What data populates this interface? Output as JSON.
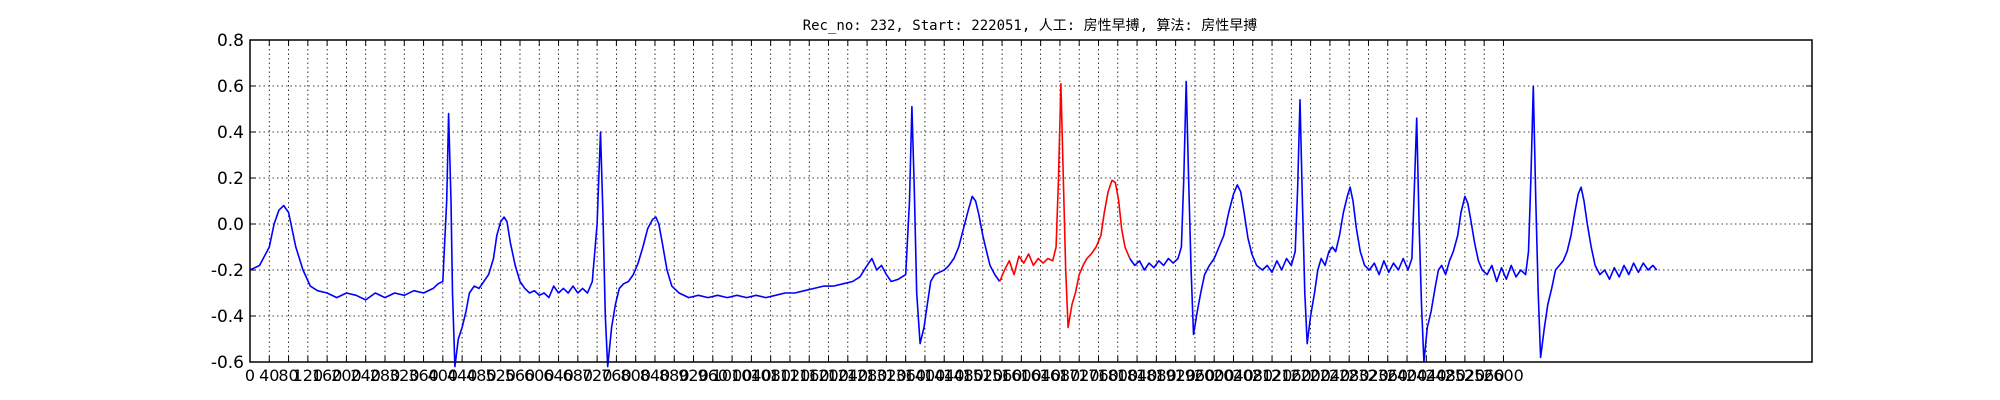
{
  "chart_data": {
    "type": "line",
    "title": "Rec_no: 232, Start: 222051, 人工: 房性早搏, 算法: 房性早搏",
    "xlabel": "",
    "ylabel": "",
    "xlim": [
      0,
      3240
    ],
    "ylim": [
      -0.6,
      0.8
    ],
    "grid": true,
    "ytick_labels": [
      "-0.6",
      "-0.4",
      "-0.2",
      "0.0",
      "0.2",
      "0.4",
      "0.6",
      "0.8"
    ],
    "xtick_labels": [
      "0",
      "40",
      "80",
      "120",
      "160",
      "200",
      "240",
      "280",
      "320",
      "360",
      "400",
      "440",
      "480",
      "520",
      "560",
      "600",
      "640",
      "680",
      "720",
      "760",
      "800",
      "840",
      "880",
      "920",
      "960",
      "1000",
      "1040",
      "1080",
      "1120",
      "1160",
      "1200",
      "1240",
      "1280",
      "1320",
      "1360",
      "1400",
      "1440",
      "1480",
      "1520",
      "1560",
      "1600",
      "1640",
      "1680",
      "1720",
      "1760",
      "1800",
      "1840",
      "1880",
      "1920",
      "1960",
      "2000",
      "2040",
      "2080",
      "2120",
      "2160",
      "2200",
      "2240",
      "2280",
      "2320",
      "2360",
      "2400",
      "2440",
      "2480",
      "2520",
      "2560",
      "2600"
    ],
    "series": [
      {
        "color": "#0000ff",
        "points": [
          [
            0,
            -0.2
          ],
          [
            20,
            -0.18
          ],
          [
            40,
            -0.1
          ],
          [
            50,
            0
          ],
          [
            60,
            0.06
          ],
          [
            70,
            0.08
          ],
          [
            80,
            0.05
          ],
          [
            95,
            -0.1
          ],
          [
            110,
            -0.2
          ],
          [
            125,
            -0.27
          ],
          [
            140,
            -0.29
          ],
          [
            160,
            -0.3
          ],
          [
            180,
            -0.32
          ],
          [
            200,
            -0.3
          ],
          [
            220,
            -0.31
          ],
          [
            240,
            -0.33
          ],
          [
            260,
            -0.3
          ],
          [
            280,
            -0.32
          ],
          [
            300,
            -0.3
          ],
          [
            320,
            -0.31
          ],
          [
            340,
            -0.29
          ],
          [
            360,
            -0.3
          ],
          [
            380,
            -0.28
          ],
          [
            390,
            -0.26
          ],
          [
            400,
            -0.25
          ],
          [
            408,
            0.1
          ],
          [
            412,
            0.48
          ],
          [
            417,
            0.1
          ],
          [
            420,
            -0.3
          ],
          [
            425,
            -0.62
          ],
          [
            432,
            -0.5
          ],
          [
            440,
            -0.45
          ],
          [
            448,
            -0.38
          ],
          [
            455,
            -0.3
          ],
          [
            465,
            -0.27
          ],
          [
            475,
            -0.28
          ],
          [
            485,
            -0.25
          ],
          [
            495,
            -0.22
          ],
          [
            505,
            -0.15
          ],
          [
            512,
            -0.05
          ],
          [
            520,
            0.01
          ],
          [
            527,
            0.03
          ],
          [
            533,
            0.01
          ],
          [
            540,
            -0.08
          ],
          [
            550,
            -0.18
          ],
          [
            560,
            -0.25
          ],
          [
            570,
            -0.28
          ],
          [
            580,
            -0.3
          ],
          [
            590,
            -0.29
          ],
          [
            600,
            -0.31
          ],
          [
            610,
            -0.3
          ],
          [
            620,
            -0.32
          ],
          [
            630,
            -0.27
          ],
          [
            640,
            -0.3
          ],
          [
            650,
            -0.28
          ],
          [
            660,
            -0.3
          ],
          [
            670,
            -0.27
          ],
          [
            680,
            -0.3
          ],
          [
            690,
            -0.28
          ],
          [
            700,
            -0.3
          ],
          [
            710,
            -0.25
          ],
          [
            720,
            0
          ],
          [
            727,
            0.4
          ],
          [
            732,
            0.05
          ],
          [
            737,
            -0.4
          ],
          [
            742,
            -0.62
          ],
          [
            750,
            -0.45
          ],
          [
            758,
            -0.35
          ],
          [
            766,
            -0.28
          ],
          [
            775,
            -0.26
          ],
          [
            785,
            -0.25
          ],
          [
            795,
            -0.22
          ],
          [
            805,
            -0.17
          ],
          [
            815,
            -0.1
          ],
          [
            825,
            -0.02
          ],
          [
            835,
            0.02
          ],
          [
            842,
            0.03
          ],
          [
            848,
            0
          ],
          [
            855,
            -0.08
          ],
          [
            865,
            -0.2
          ],
          [
            875,
            -0.27
          ],
          [
            890,
            -0.3
          ],
          [
            910,
            -0.32
          ],
          [
            930,
            -0.31
          ],
          [
            950,
            -0.32
          ],
          [
            970,
            -0.31
          ],
          [
            990,
            -0.32
          ],
          [
            1010,
            -0.31
          ],
          [
            1030,
            -0.32
          ],
          [
            1050,
            -0.31
          ],
          [
            1070,
            -0.32
          ],
          [
            1090,
            -0.31
          ],
          [
            1110,
            -0.3
          ],
          [
            1130,
            -0.3
          ],
          [
            1150,
            -0.29
          ],
          [
            1170,
            -0.28
          ],
          [
            1190,
            -0.27
          ],
          [
            1210,
            -0.27
          ],
          [
            1230,
            -0.26
          ],
          [
            1250,
            -0.25
          ],
          [
            1265,
            -0.23
          ],
          [
            1280,
            -0.18
          ],
          [
            1290,
            -0.15
          ],
          [
            1300,
            -0.2
          ],
          [
            1310,
            -0.18
          ],
          [
            1320,
            -0.22
          ],
          [
            1330,
            -0.25
          ],
          [
            1345,
            -0.24
          ],
          [
            1360,
            -0.22
          ],
          [
            1368,
            0.1
          ],
          [
            1373,
            0.51
          ],
          [
            1378,
            0.15
          ],
          [
            1383,
            -0.3
          ],
          [
            1390,
            -0.52
          ],
          [
            1398,
            -0.45
          ],
          [
            1405,
            -0.35
          ],
          [
            1412,
            -0.25
          ],
          [
            1420,
            -0.22
          ],
          [
            1430,
            -0.21
          ],
          [
            1440,
            -0.2
          ],
          [
            1450,
            -0.18
          ],
          [
            1460,
            -0.15
          ],
          [
            1470,
            -0.1
          ],
          [
            1480,
            -0.02
          ],
          [
            1490,
            0.06
          ],
          [
            1498,
            0.12
          ],
          [
            1505,
            0.1
          ],
          [
            1512,
            0.04
          ],
          [
            1520,
            -0.05
          ],
          [
            1528,
            -0.12
          ],
          [
            1535,
            -0.18
          ],
          [
            1545,
            -0.22
          ],
          [
            1555,
            -0.25
          ]
        ]
      },
      {
        "color": "#ff0000",
        "points": [
          [
            1555,
            -0.25
          ],
          [
            1565,
            -0.2
          ],
          [
            1575,
            -0.16
          ],
          [
            1585,
            -0.22
          ],
          [
            1595,
            -0.14
          ],
          [
            1605,
            -0.17
          ],
          [
            1615,
            -0.13
          ],
          [
            1625,
            -0.18
          ],
          [
            1635,
            -0.15
          ],
          [
            1645,
            -0.17
          ],
          [
            1655,
            -0.15
          ],
          [
            1665,
            -0.16
          ],
          [
            1672,
            -0.1
          ],
          [
            1677,
            0.2
          ],
          [
            1682,
            0.61
          ],
          [
            1687,
            0.2
          ],
          [
            1692,
            -0.2
          ],
          [
            1697,
            -0.45
          ],
          [
            1705,
            -0.35
          ],
          [
            1712,
            -0.3
          ],
          [
            1720,
            -0.22
          ],
          [
            1728,
            -0.18
          ],
          [
            1736,
            -0.15
          ],
          [
            1745,
            -0.13
          ],
          [
            1755,
            -0.1
          ],
          [
            1765,
            -0.05
          ],
          [
            1772,
            0.05
          ],
          [
            1780,
            0.14
          ],
          [
            1788,
            0.19
          ],
          [
            1795,
            0.18
          ],
          [
            1802,
            0.1
          ],
          [
            1808,
            -0.02
          ],
          [
            1815,
            -0.1
          ],
          [
            1825,
            -0.15
          ]
        ]
      },
      {
        "color": "#0000ff",
        "points": [
          [
            1825,
            -0.15
          ],
          [
            1835,
            -0.18
          ],
          [
            1845,
            -0.16
          ],
          [
            1855,
            -0.2
          ],
          [
            1865,
            -0.17
          ],
          [
            1875,
            -0.19
          ],
          [
            1885,
            -0.16
          ],
          [
            1895,
            -0.18
          ],
          [
            1905,
            -0.15
          ],
          [
            1915,
            -0.17
          ],
          [
            1925,
            -0.15
          ],
          [
            1932,
            -0.1
          ],
          [
            1937,
            0.2
          ],
          [
            1942,
            0.62
          ],
          [
            1947,
            0.2
          ],
          [
            1952,
            -0.2
          ],
          [
            1957,
            -0.48
          ],
          [
            1965,
            -0.38
          ],
          [
            1972,
            -0.3
          ],
          [
            1980,
            -0.22
          ],
          [
            1990,
            -0.18
          ],
          [
            2000,
            -0.15
          ],
          [
            2010,
            -0.1
          ],
          [
            2020,
            -0.05
          ],
          [
            2030,
            0.05
          ],
          [
            2040,
            0.13
          ],
          [
            2048,
            0.17
          ],
          [
            2055,
            0.14
          ],
          [
            2062,
            0.05
          ],
          [
            2070,
            -0.06
          ],
          [
            2078,
            -0.13
          ],
          [
            2088,
            -0.18
          ],
          [
            2100,
            -0.2
          ],
          [
            2110,
            -0.18
          ],
          [
            2120,
            -0.21
          ],
          [
            2130,
            -0.16
          ],
          [
            2140,
            -0.2
          ],
          [
            2150,
            -0.15
          ],
          [
            2160,
            -0.18
          ],
          [
            2168,
            -0.12
          ],
          [
            2173,
            0.15
          ],
          [
            2178,
            0.54
          ],
          [
            2183,
            0.1
          ],
          [
            2188,
            -0.3
          ],
          [
            2193,
            -0.52
          ],
          [
            2200,
            -0.4
          ],
          [
            2208,
            -0.3
          ],
          [
            2215,
            -0.2
          ],
          [
            2222,
            -0.15
          ],
          [
            2230,
            -0.18
          ],
          [
            2238,
            -0.12
          ],
          [
            2245,
            -0.1
          ],
          [
            2252,
            -0.12
          ],
          [
            2260,
            -0.05
          ],
          [
            2268,
            0.05
          ],
          [
            2276,
            0.12
          ],
          [
            2282,
            0.16
          ],
          [
            2288,
            0.1
          ],
          [
            2295,
            -0.02
          ],
          [
            2303,
            -0.12
          ],
          [
            2312,
            -0.18
          ],
          [
            2322,
            -0.2
          ],
          [
            2332,
            -0.17
          ],
          [
            2342,
            -0.22
          ],
          [
            2352,
            -0.16
          ],
          [
            2362,
            -0.21
          ],
          [
            2372,
            -0.17
          ],
          [
            2382,
            -0.2
          ],
          [
            2392,
            -0.15
          ],
          [
            2402,
            -0.2
          ],
          [
            2410,
            -0.15
          ],
          [
            2415,
            0.15
          ],
          [
            2420,
            0.46
          ],
          [
            2425,
            0
          ],
          [
            2430,
            -0.35
          ],
          [
            2435,
            -0.6
          ],
          [
            2442,
            -0.45
          ],
          [
            2450,
            -0.38
          ],
          [
            2458,
            -0.28
          ],
          [
            2465,
            -0.2
          ],
          [
            2472,
            -0.18
          ],
          [
            2480,
            -0.22
          ],
          [
            2488,
            -0.16
          ],
          [
            2496,
            -0.12
          ],
          [
            2505,
            -0.05
          ],
          [
            2512,
            0.05
          ],
          [
            2520,
            0.12
          ],
          [
            2526,
            0.09
          ],
          [
            2532,
            0.02
          ],
          [
            2540,
            -0.08
          ],
          [
            2548,
            -0.16
          ],
          [
            2556,
            -0.2
          ],
          [
            2566,
            -0.22
          ],
          [
            2576,
            -0.18
          ],
          [
            2586,
            -0.25
          ],
          [
            2596,
            -0.19
          ],
          [
            2606,
            -0.24
          ],
          [
            2616,
            -0.18
          ],
          [
            2626,
            -0.23
          ],
          [
            2636,
            -0.2
          ],
          [
            2646,
            -0.22
          ],
          [
            2652,
            -0.12
          ],
          [
            2657,
            0.2
          ],
          [
            2662,
            0.6
          ],
          [
            2667,
            0.1
          ],
          [
            2672,
            -0.3
          ],
          [
            2677,
            -0.58
          ],
          [
            2685,
            -0.45
          ],
          [
            2692,
            -0.35
          ],
          [
            2700,
            -0.28
          ],
          [
            2708,
            -0.2
          ],
          [
            2716,
            -0.18
          ],
          [
            2724,
            -0.16
          ],
          [
            2732,
            -0.12
          ],
          [
            2740,
            -0.05
          ],
          [
            2748,
            0.05
          ],
          [
            2755,
            0.13
          ],
          [
            2761,
            0.16
          ],
          [
            2767,
            0.1
          ],
          [
            2774,
            0
          ],
          [
            2782,
            -0.1
          ],
          [
            2790,
            -0.18
          ],
          [
            2800,
            -0.22
          ],
          [
            2810,
            -0.2
          ],
          [
            2820,
            -0.24
          ],
          [
            2830,
            -0.19
          ],
          [
            2840,
            -0.23
          ],
          [
            2850,
            -0.18
          ],
          [
            2860,
            -0.22
          ],
          [
            2870,
            -0.17
          ],
          [
            2880,
            -0.21
          ],
          [
            2890,
            -0.17
          ],
          [
            2900,
            -0.2
          ],
          [
            2910,
            -0.18
          ],
          [
            2918,
            -0.2
          ]
        ]
      }
    ]
  }
}
